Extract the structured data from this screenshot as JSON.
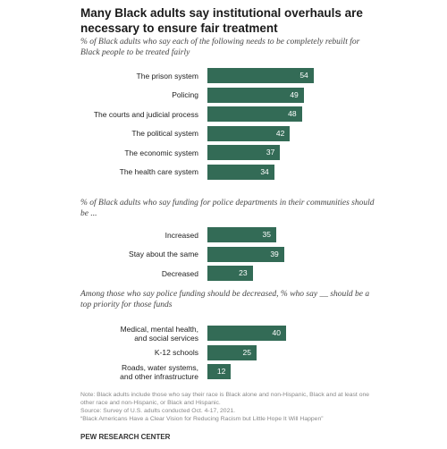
{
  "title": "Many Black adults say institutional overhauls are necessary to ensure fair treatment",
  "chart_data": [
    {
      "type": "bar",
      "subtitle": "% of Black adults who say each of the following needs to be completely rebuilt for Black people to be treated fairly",
      "categories": [
        "The prison system",
        "Policing",
        "The courts and judicial process",
        "The political system",
        "The economic system",
        "The health care system"
      ],
      "values": [
        54,
        49,
        48,
        42,
        37,
        34
      ],
      "color": "#336b56"
    },
    {
      "type": "bar",
      "subtitle": "% of Black adults who say funding for police departments in their communities should be ...",
      "categories": [
        "Increased",
        "Stay about the same",
        "Decreased"
      ],
      "values": [
        35,
        39,
        23
      ],
      "color": "#336b56"
    },
    {
      "type": "bar",
      "subtitle": "Among those who say police funding should be decreased, % who say __ should be a top priority for those funds",
      "categories": [
        "Medical, mental health,\nand social services",
        "K-12 schools",
        "Roads, water systems,\nand other infrastructure"
      ],
      "values": [
        40,
        25,
        12
      ],
      "color": "#336b56"
    }
  ],
  "note": "Note: Black adults include those who say their race is Black alone and non-Hispanic, Black and at least one other race and non-Hispanic, or Black and Hispanic.",
  "source": "Source: Survey of U.S. adults conducted Oct. 4-17, 2021.",
  "report": "“Black Americans Have a Clear Vision for Reducing Racism but Little Hope It Will Happen”",
  "brand": "PEW RESEARCH CENTER"
}
